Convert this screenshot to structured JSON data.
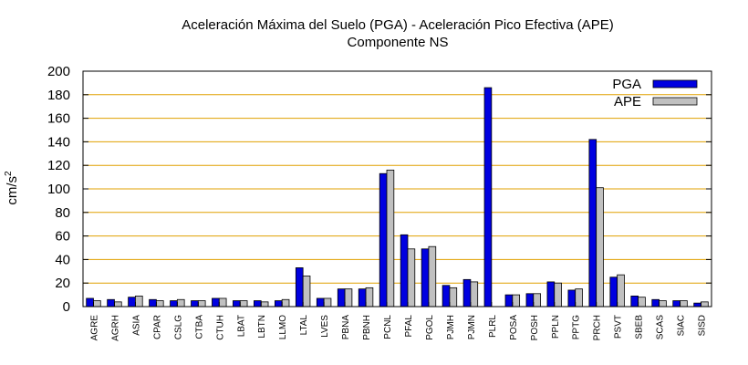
{
  "chart_data": {
    "type": "bar",
    "title": "Aceleración Máxima del Suelo (PGA) -  Aceleración Pico Efectiva (APE)",
    "subtitle": "Componente NS",
    "ylabel_base": "cm/s",
    "ylabel_exp": "2",
    "xlabel": "",
    "ylim": [
      0,
      200
    ],
    "yticks": [
      0,
      20,
      40,
      60,
      80,
      100,
      120,
      140,
      160,
      180,
      200
    ],
    "grid": true,
    "grid_axis": "y",
    "legend_position": "top-right",
    "categories": [
      "AGRE",
      "AGRH",
      "ASIA",
      "CPAR",
      "CSLG",
      "CTBA",
      "CTUH",
      "LBAT",
      "LBTN",
      "LLMO",
      "LTAL",
      "LVES",
      "PBNA",
      "PBNH",
      "PCNL",
      "PFAL",
      "PGOL",
      "PJMH",
      "PJMN",
      "PLRL",
      "POSA",
      "POSH",
      "PPLN",
      "PPTG",
      "PRCH",
      "PSVT",
      "SBEB",
      "SCAS",
      "SIAC",
      "SISD"
    ],
    "series": [
      {
        "name": "PGA",
        "color": "#0000e0",
        "values": [
          7,
          6,
          8,
          6,
          5,
          5,
          7,
          5,
          5,
          5,
          33,
          7,
          15,
          15,
          113,
          61,
          49,
          18,
          23,
          186,
          10,
          11,
          21,
          14,
          142,
          25,
          9,
          6,
          5,
          3
        ]
      },
      {
        "name": "APE",
        "color": "#c0c0c0",
        "values": [
          5,
          4,
          9,
          5,
          6,
          5,
          7,
          5,
          4,
          6,
          26,
          7,
          15,
          16,
          116,
          49,
          51,
          16,
          21,
          0,
          10,
          11,
          20,
          15,
          101,
          27,
          8,
          5,
          5,
          4
        ]
      }
    ],
    "colors": {
      "grid": "#e0a000",
      "axis": "#000000",
      "bar_edge": "#000000"
    }
  }
}
